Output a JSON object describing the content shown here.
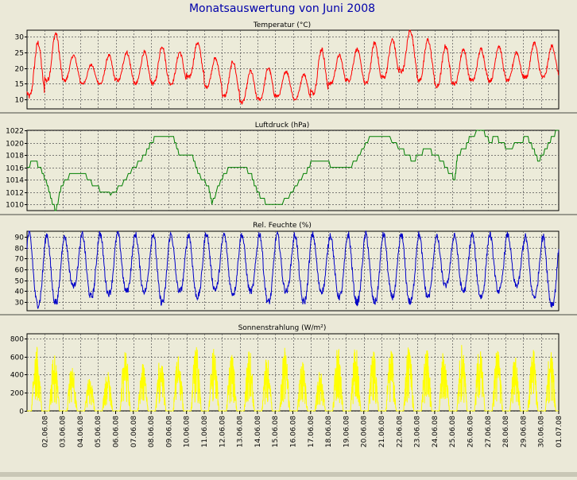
{
  "title": "Monatsauswertung von Juni 2008",
  "colors": {
    "background": "#ebe9d8",
    "temperature": "#ff0000",
    "pressure": "#008000",
    "humidity": "#0000c8",
    "radiation": "#ffff00",
    "title_text": "#0000aa"
  },
  "x_tick_labels": [
    "02.06.08",
    "03.06.08",
    "04.06.08",
    "05.06.08",
    "06.06.08",
    "07.06.08",
    "08.06.08",
    "09.06.08",
    "10.06.08",
    "11.06.08",
    "12.06.08",
    "13.06.08",
    "14.06.08",
    "15.06.08",
    "16.06.08",
    "17.06.08",
    "18.06.08",
    "19.06.08",
    "20.06.08",
    "21.06.08",
    "22.06.08",
    "23.06.08",
    "24.06.08",
    "25.06.08",
    "26.06.08",
    "27.06.08",
    "28.06.08",
    "29.06.08",
    "30.06.08",
    "01.07.08"
  ],
  "chart_data": [
    {
      "type": "line",
      "title": "Temperatur (°C)",
      "x_unit": "day of June 2008 (1 = 01.06.08 00:00)",
      "ylim": [
        7,
        32
      ],
      "yticks": [
        10,
        15,
        20,
        25,
        30
      ],
      "grid": true,
      "color": "#ff0000",
      "daily": {
        "min": [
          11,
          16,
          16,
          15,
          15,
          16,
          15,
          15,
          15,
          17,
          14,
          11,
          9,
          10,
          11,
          10,
          12,
          15,
          16,
          15,
          17,
          19,
          16,
          14,
          15,
          16,
          16,
          16,
          17,
          17
        ],
        "max": [
          28,
          31,
          24,
          21,
          24,
          25,
          25,
          27,
          25,
          28,
          23,
          22,
          19,
          20,
          19,
          18,
          26,
          24,
          26,
          28,
          29,
          32,
          29,
          27,
          26,
          26,
          27,
          25,
          28,
          27
        ]
      }
    },
    {
      "type": "line",
      "title": "Luftdruck (hPa)",
      "ylim": [
        1009,
        1022
      ],
      "yticks": [
        1010,
        1012,
        1014,
        1016,
        1018,
        1020,
        1022
      ],
      "grid": true,
      "color": "#008000",
      "points": [
        [
          1,
          1016
        ],
        [
          1.6,
          1017
        ],
        [
          2,
          1016
        ],
        [
          2.6,
          1013
        ],
        [
          3,
          1010
        ],
        [
          3.3,
          1009
        ],
        [
          3.7,
          1013
        ],
        [
          4.5,
          1015
        ],
        [
          5.5,
          1015
        ],
        [
          6.3,
          1013
        ],
        [
          7,
          1012
        ],
        [
          7.6,
          1011.5
        ],
        [
          8.5,
          1013
        ],
        [
          9.5,
          1016
        ],
        [
          10.3,
          1018
        ],
        [
          10.8,
          1020
        ],
        [
          11.3,
          1021
        ],
        [
          12.5,
          1021
        ],
        [
          13,
          1018
        ],
        [
          14,
          1018
        ],
        [
          14.5,
          1015
        ],
        [
          15.3,
          1013
        ],
        [
          15.6,
          1010
        ],
        [
          16.3,
          1014
        ],
        [
          17,
          1016
        ],
        [
          18,
          1016
        ],
        [
          18.7,
          1015
        ],
        [
          19,
          1013
        ],
        [
          19.5,
          1011
        ],
        [
          20,
          1010
        ],
        [
          21,
          1010
        ],
        [
          22,
          1012
        ],
        [
          23,
          1015
        ],
        [
          23.5,
          1017
        ],
        [
          24.5,
          1017
        ],
        [
          25.2,
          1016
        ],
        [
          26.5,
          1016
        ],
        [
          27.3,
          1018
        ],
        [
          28.2,
          1021
        ],
        [
          29.5,
          1021
        ],
        [
          30.5,
          1019
        ],
        [
          31,
          1018
        ],
        [
          31.5,
          1017
        ],
        [
          32,
          1018
        ],
        [
          32.6,
          1019
        ],
        [
          33.2,
          1018
        ],
        [
          33.8,
          1017
        ],
        [
          34.4,
          1015
        ],
        [
          34.8,
          1014
        ],
        [
          35,
          1018
        ],
        [
          35.6,
          1019
        ],
        [
          36,
          1021
        ],
        [
          37,
          1022
        ],
        [
          37.6,
          1020
        ],
        [
          38,
          1021
        ],
        [
          38.4,
          1020
        ],
        [
          39,
          1019
        ],
        [
          40,
          1020
        ],
        [
          40.5,
          1021
        ],
        [
          41,
          1019
        ],
        [
          41.4,
          1017
        ],
        [
          42,
          1019
        ],
        [
          42.5,
          1021
        ],
        [
          43,
          1022
        ]
      ]
    },
    {
      "type": "line",
      "title": "Rel. Feuchte (%)",
      "ylim": [
        22,
        95
      ],
      "yticks": [
        30,
        40,
        50,
        60,
        70,
        80,
        90
      ],
      "grid": true,
      "color": "#0000c8",
      "daily": {
        "min": [
          28,
          30,
          45,
          35,
          38,
          40,
          40,
          30,
          40,
          35,
          42,
          38,
          40,
          30,
          40,
          30,
          40,
          35,
          30,
          30,
          35,
          30,
          35,
          45,
          40,
          35,
          40,
          45,
          35,
          28
        ],
        "max": [
          93,
          92,
          90,
          92,
          93,
          93,
          92,
          93,
          92,
          92,
          93,
          92,
          92,
          93,
          92,
          92,
          92,
          92,
          92,
          92,
          92,
          92,
          92,
          90,
          92,
          92,
          92,
          92,
          90,
          90
        ]
      }
    },
    {
      "type": "line",
      "title": "Sonnenstrahlung (W/m²)",
      "ylim": [
        0,
        850
      ],
      "yticks": [
        0,
        200,
        400,
        600,
        800
      ],
      "grid": true,
      "color": "#ffff00",
      "daily_peak": [
        720,
        650,
        520,
        380,
        450,
        700,
        520,
        640,
        700,
        720,
        700,
        660,
        680,
        620,
        710,
        560,
        460,
        720,
        730,
        700,
        730,
        740,
        720,
        720,
        750,
        760,
        700,
        620,
        700,
        720
      ]
    }
  ]
}
